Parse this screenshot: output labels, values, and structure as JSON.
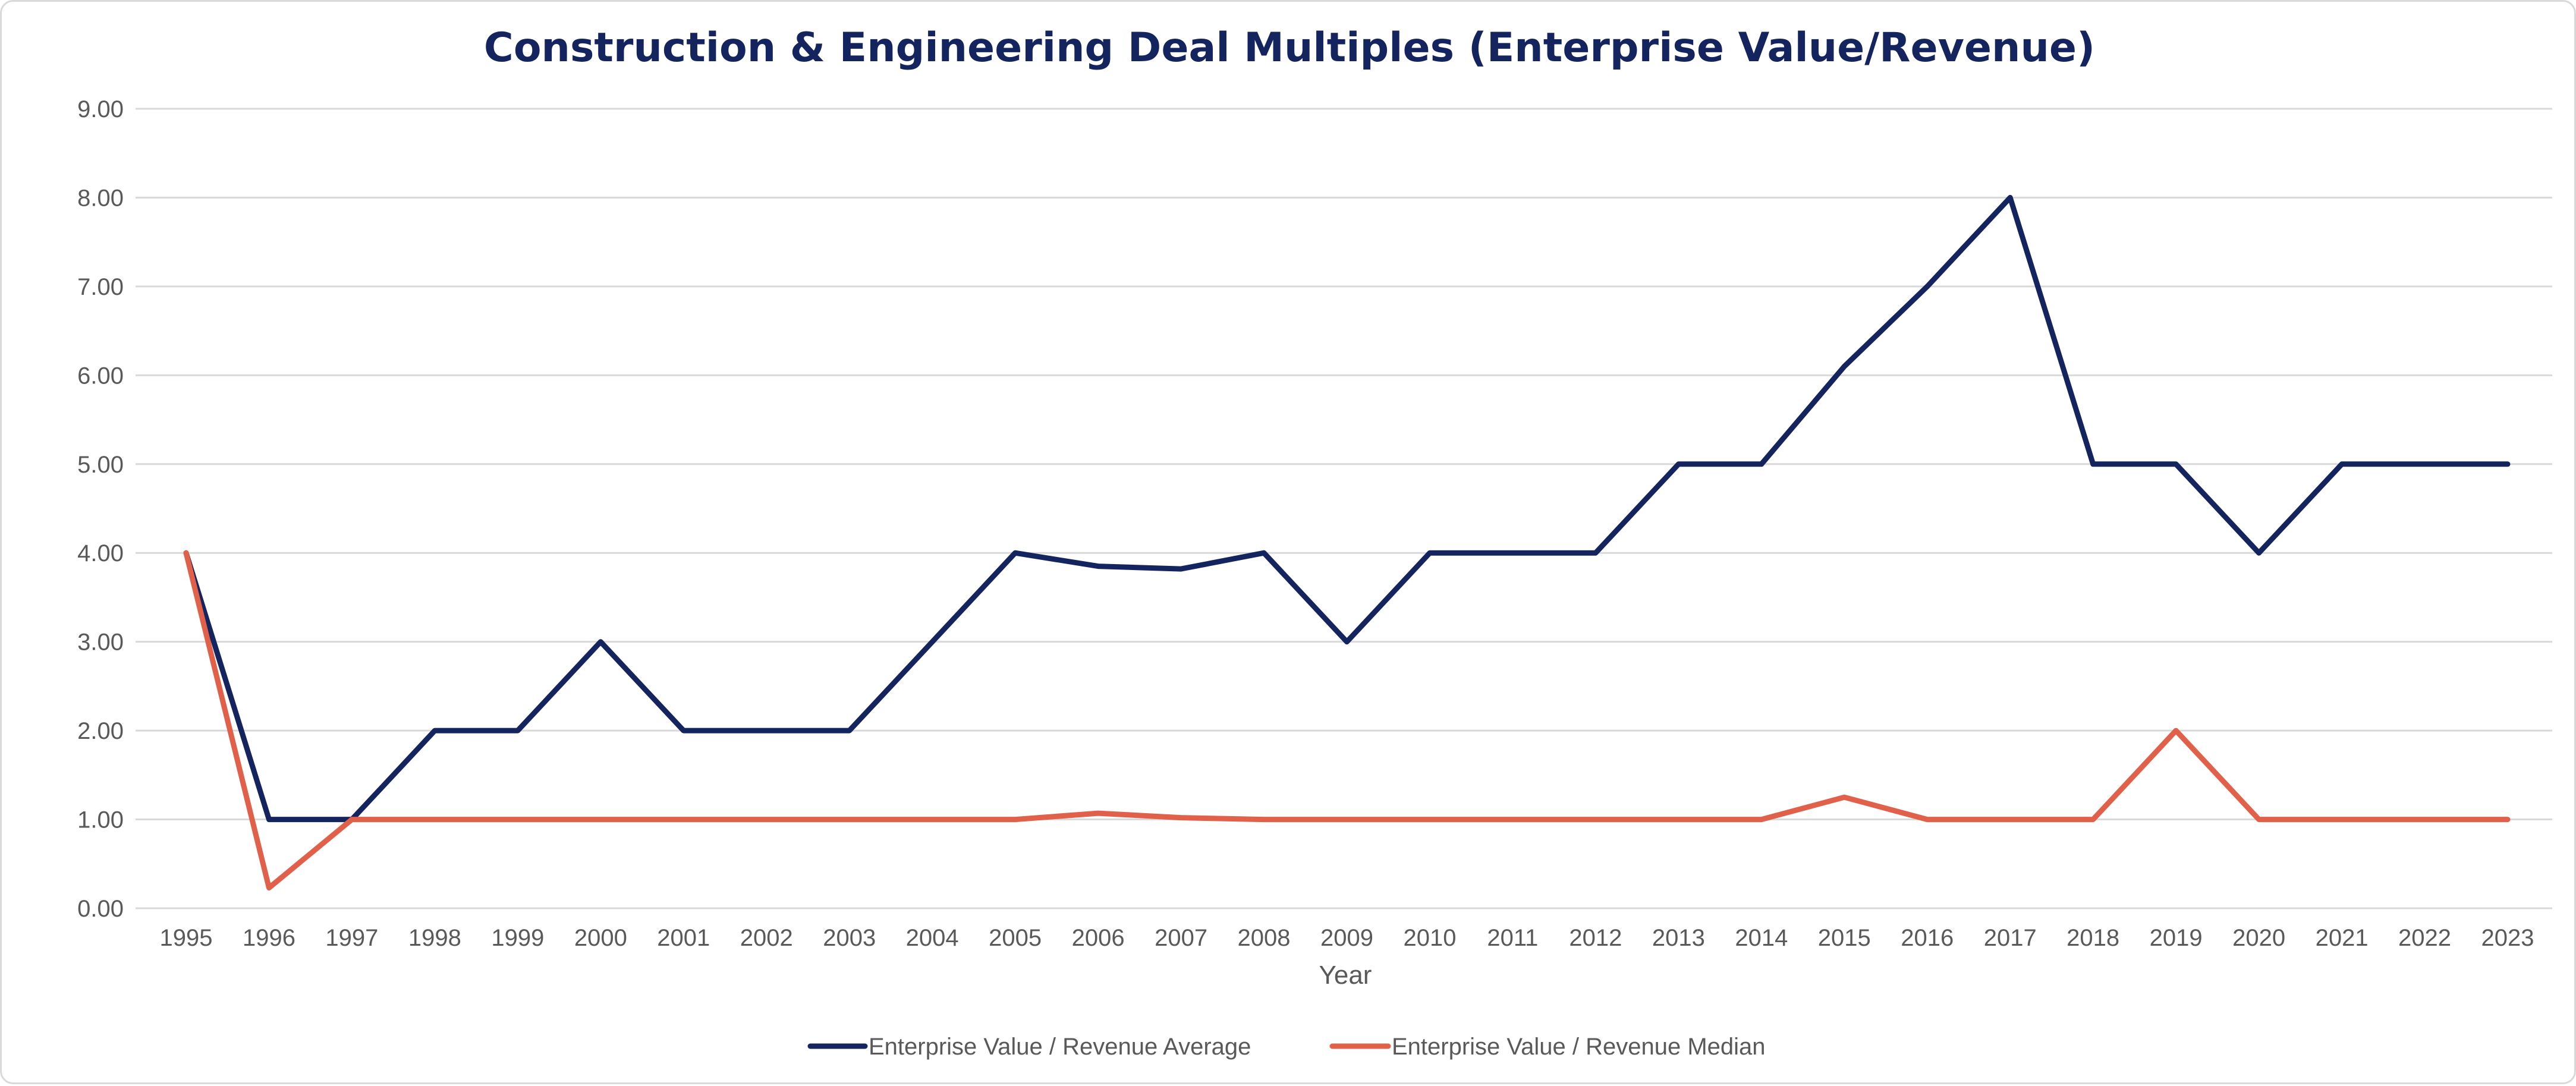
{
  "chart_data": {
    "type": "line",
    "title": "Construction & Engineering Deal Multiples (Enterprise Value/Revenue)",
    "xlabel": "Year",
    "ylabel": "",
    "ylim": [
      0,
      9
    ],
    "y_tick_labels": [
      "0.00",
      "1.00",
      "2.00",
      "3.00",
      "4.00",
      "5.00",
      "6.00",
      "7.00",
      "8.00",
      "9.00"
    ],
    "categories": [
      "1995",
      "1996",
      "1997",
      "1998",
      "1999",
      "2000",
      "2001",
      "2002",
      "2003",
      "2004",
      "2005",
      "2006",
      "2007",
      "2008",
      "2009",
      "2010",
      "2011",
      "2012",
      "2013",
      "2014",
      "2015",
      "2016",
      "2017",
      "2018",
      "2019",
      "2020",
      "2021",
      "2022",
      "2023"
    ],
    "grid": true,
    "legend_position": "bottom",
    "series": [
      {
        "name": "Enterprise Value / Revenue Average",
        "color": "#14245e",
        "values": [
          4.0,
          1.0,
          1.0,
          2.0,
          2.0,
          3.0,
          2.0,
          2.0,
          2.0,
          3.0,
          4.0,
          3.85,
          3.82,
          4.0,
          3.0,
          4.0,
          4.0,
          4.0,
          5.0,
          5.0,
          6.1,
          7.0,
          8.0,
          5.0,
          5.0,
          4.0,
          5.0,
          5.0,
          5.0
        ]
      },
      {
        "name": "Enterprise Value / Revenue Median",
        "color": "#e0604a",
        "values": [
          4.0,
          0.23,
          1.0,
          1.0,
          1.0,
          1.0,
          1.0,
          1.0,
          1.0,
          1.0,
          1.0,
          1.07,
          1.02,
          1.0,
          1.0,
          1.0,
          1.0,
          1.0,
          1.0,
          1.0,
          1.25,
          1.0,
          1.0,
          1.0,
          2.0,
          1.0,
          1.0,
          1.0,
          1.0
        ]
      }
    ],
    "title_color": "#14245e"
  }
}
